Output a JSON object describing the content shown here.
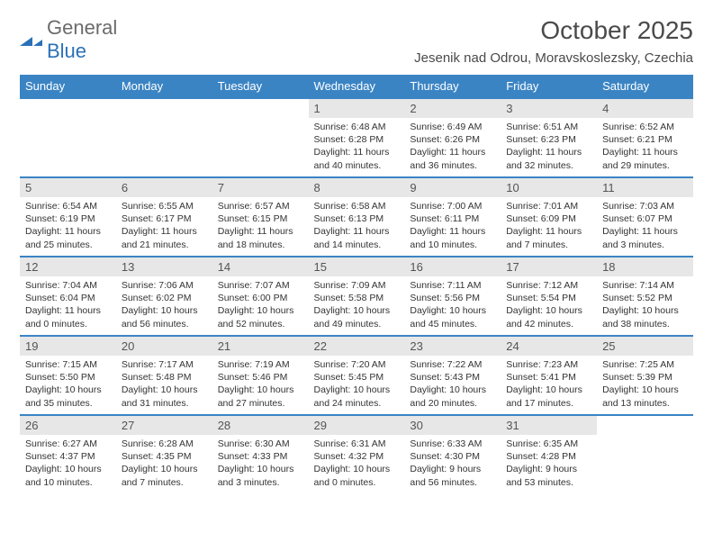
{
  "logo": {
    "text1": "General",
    "text2": "Blue"
  },
  "title": "October 2025",
  "subtitle": "Jesenik nad Odrou, Moravskoslezsky, Czechia",
  "colors": {
    "headerBg": "#3b84c4",
    "rowBorder": "#3b84c4",
    "dayBg": "#e7e7e7"
  },
  "dayHeaders": [
    "Sunday",
    "Monday",
    "Tuesday",
    "Wednesday",
    "Thursday",
    "Friday",
    "Saturday"
  ],
  "weeks": [
    [
      null,
      null,
      null,
      {
        "n": "1",
        "sr": "Sunrise: 6:48 AM",
        "ss": "Sunset: 6:28 PM",
        "d1": "Daylight: 11 hours",
        "d2": "and 40 minutes."
      },
      {
        "n": "2",
        "sr": "Sunrise: 6:49 AM",
        "ss": "Sunset: 6:26 PM",
        "d1": "Daylight: 11 hours",
        "d2": "and 36 minutes."
      },
      {
        "n": "3",
        "sr": "Sunrise: 6:51 AM",
        "ss": "Sunset: 6:23 PM",
        "d1": "Daylight: 11 hours",
        "d2": "and 32 minutes."
      },
      {
        "n": "4",
        "sr": "Sunrise: 6:52 AM",
        "ss": "Sunset: 6:21 PM",
        "d1": "Daylight: 11 hours",
        "d2": "and 29 minutes."
      }
    ],
    [
      {
        "n": "5",
        "sr": "Sunrise: 6:54 AM",
        "ss": "Sunset: 6:19 PM",
        "d1": "Daylight: 11 hours",
        "d2": "and 25 minutes."
      },
      {
        "n": "6",
        "sr": "Sunrise: 6:55 AM",
        "ss": "Sunset: 6:17 PM",
        "d1": "Daylight: 11 hours",
        "d2": "and 21 minutes."
      },
      {
        "n": "7",
        "sr": "Sunrise: 6:57 AM",
        "ss": "Sunset: 6:15 PM",
        "d1": "Daylight: 11 hours",
        "d2": "and 18 minutes."
      },
      {
        "n": "8",
        "sr": "Sunrise: 6:58 AM",
        "ss": "Sunset: 6:13 PM",
        "d1": "Daylight: 11 hours",
        "d2": "and 14 minutes."
      },
      {
        "n": "9",
        "sr": "Sunrise: 7:00 AM",
        "ss": "Sunset: 6:11 PM",
        "d1": "Daylight: 11 hours",
        "d2": "and 10 minutes."
      },
      {
        "n": "10",
        "sr": "Sunrise: 7:01 AM",
        "ss": "Sunset: 6:09 PM",
        "d1": "Daylight: 11 hours",
        "d2": "and 7 minutes."
      },
      {
        "n": "11",
        "sr": "Sunrise: 7:03 AM",
        "ss": "Sunset: 6:07 PM",
        "d1": "Daylight: 11 hours",
        "d2": "and 3 minutes."
      }
    ],
    [
      {
        "n": "12",
        "sr": "Sunrise: 7:04 AM",
        "ss": "Sunset: 6:04 PM",
        "d1": "Daylight: 11 hours",
        "d2": "and 0 minutes."
      },
      {
        "n": "13",
        "sr": "Sunrise: 7:06 AM",
        "ss": "Sunset: 6:02 PM",
        "d1": "Daylight: 10 hours",
        "d2": "and 56 minutes."
      },
      {
        "n": "14",
        "sr": "Sunrise: 7:07 AM",
        "ss": "Sunset: 6:00 PM",
        "d1": "Daylight: 10 hours",
        "d2": "and 52 minutes."
      },
      {
        "n": "15",
        "sr": "Sunrise: 7:09 AM",
        "ss": "Sunset: 5:58 PM",
        "d1": "Daylight: 10 hours",
        "d2": "and 49 minutes."
      },
      {
        "n": "16",
        "sr": "Sunrise: 7:11 AM",
        "ss": "Sunset: 5:56 PM",
        "d1": "Daylight: 10 hours",
        "d2": "and 45 minutes."
      },
      {
        "n": "17",
        "sr": "Sunrise: 7:12 AM",
        "ss": "Sunset: 5:54 PM",
        "d1": "Daylight: 10 hours",
        "d2": "and 42 minutes."
      },
      {
        "n": "18",
        "sr": "Sunrise: 7:14 AM",
        "ss": "Sunset: 5:52 PM",
        "d1": "Daylight: 10 hours",
        "d2": "and 38 minutes."
      }
    ],
    [
      {
        "n": "19",
        "sr": "Sunrise: 7:15 AM",
        "ss": "Sunset: 5:50 PM",
        "d1": "Daylight: 10 hours",
        "d2": "and 35 minutes."
      },
      {
        "n": "20",
        "sr": "Sunrise: 7:17 AM",
        "ss": "Sunset: 5:48 PM",
        "d1": "Daylight: 10 hours",
        "d2": "and 31 minutes."
      },
      {
        "n": "21",
        "sr": "Sunrise: 7:19 AM",
        "ss": "Sunset: 5:46 PM",
        "d1": "Daylight: 10 hours",
        "d2": "and 27 minutes."
      },
      {
        "n": "22",
        "sr": "Sunrise: 7:20 AM",
        "ss": "Sunset: 5:45 PM",
        "d1": "Daylight: 10 hours",
        "d2": "and 24 minutes."
      },
      {
        "n": "23",
        "sr": "Sunrise: 7:22 AM",
        "ss": "Sunset: 5:43 PM",
        "d1": "Daylight: 10 hours",
        "d2": "and 20 minutes."
      },
      {
        "n": "24",
        "sr": "Sunrise: 7:23 AM",
        "ss": "Sunset: 5:41 PM",
        "d1": "Daylight: 10 hours",
        "d2": "and 17 minutes."
      },
      {
        "n": "25",
        "sr": "Sunrise: 7:25 AM",
        "ss": "Sunset: 5:39 PM",
        "d1": "Daylight: 10 hours",
        "d2": "and 13 minutes."
      }
    ],
    [
      {
        "n": "26",
        "sr": "Sunrise: 6:27 AM",
        "ss": "Sunset: 4:37 PM",
        "d1": "Daylight: 10 hours",
        "d2": "and 10 minutes."
      },
      {
        "n": "27",
        "sr": "Sunrise: 6:28 AM",
        "ss": "Sunset: 4:35 PM",
        "d1": "Daylight: 10 hours",
        "d2": "and 7 minutes."
      },
      {
        "n": "28",
        "sr": "Sunrise: 6:30 AM",
        "ss": "Sunset: 4:33 PM",
        "d1": "Daylight: 10 hours",
        "d2": "and 3 minutes."
      },
      {
        "n": "29",
        "sr": "Sunrise: 6:31 AM",
        "ss": "Sunset: 4:32 PM",
        "d1": "Daylight: 10 hours",
        "d2": "and 0 minutes."
      },
      {
        "n": "30",
        "sr": "Sunrise: 6:33 AM",
        "ss": "Sunset: 4:30 PM",
        "d1": "Daylight: 9 hours",
        "d2": "and 56 minutes."
      },
      {
        "n": "31",
        "sr": "Sunrise: 6:35 AM",
        "ss": "Sunset: 4:28 PM",
        "d1": "Daylight: 9 hours",
        "d2": "and 53 minutes."
      },
      null
    ]
  ]
}
